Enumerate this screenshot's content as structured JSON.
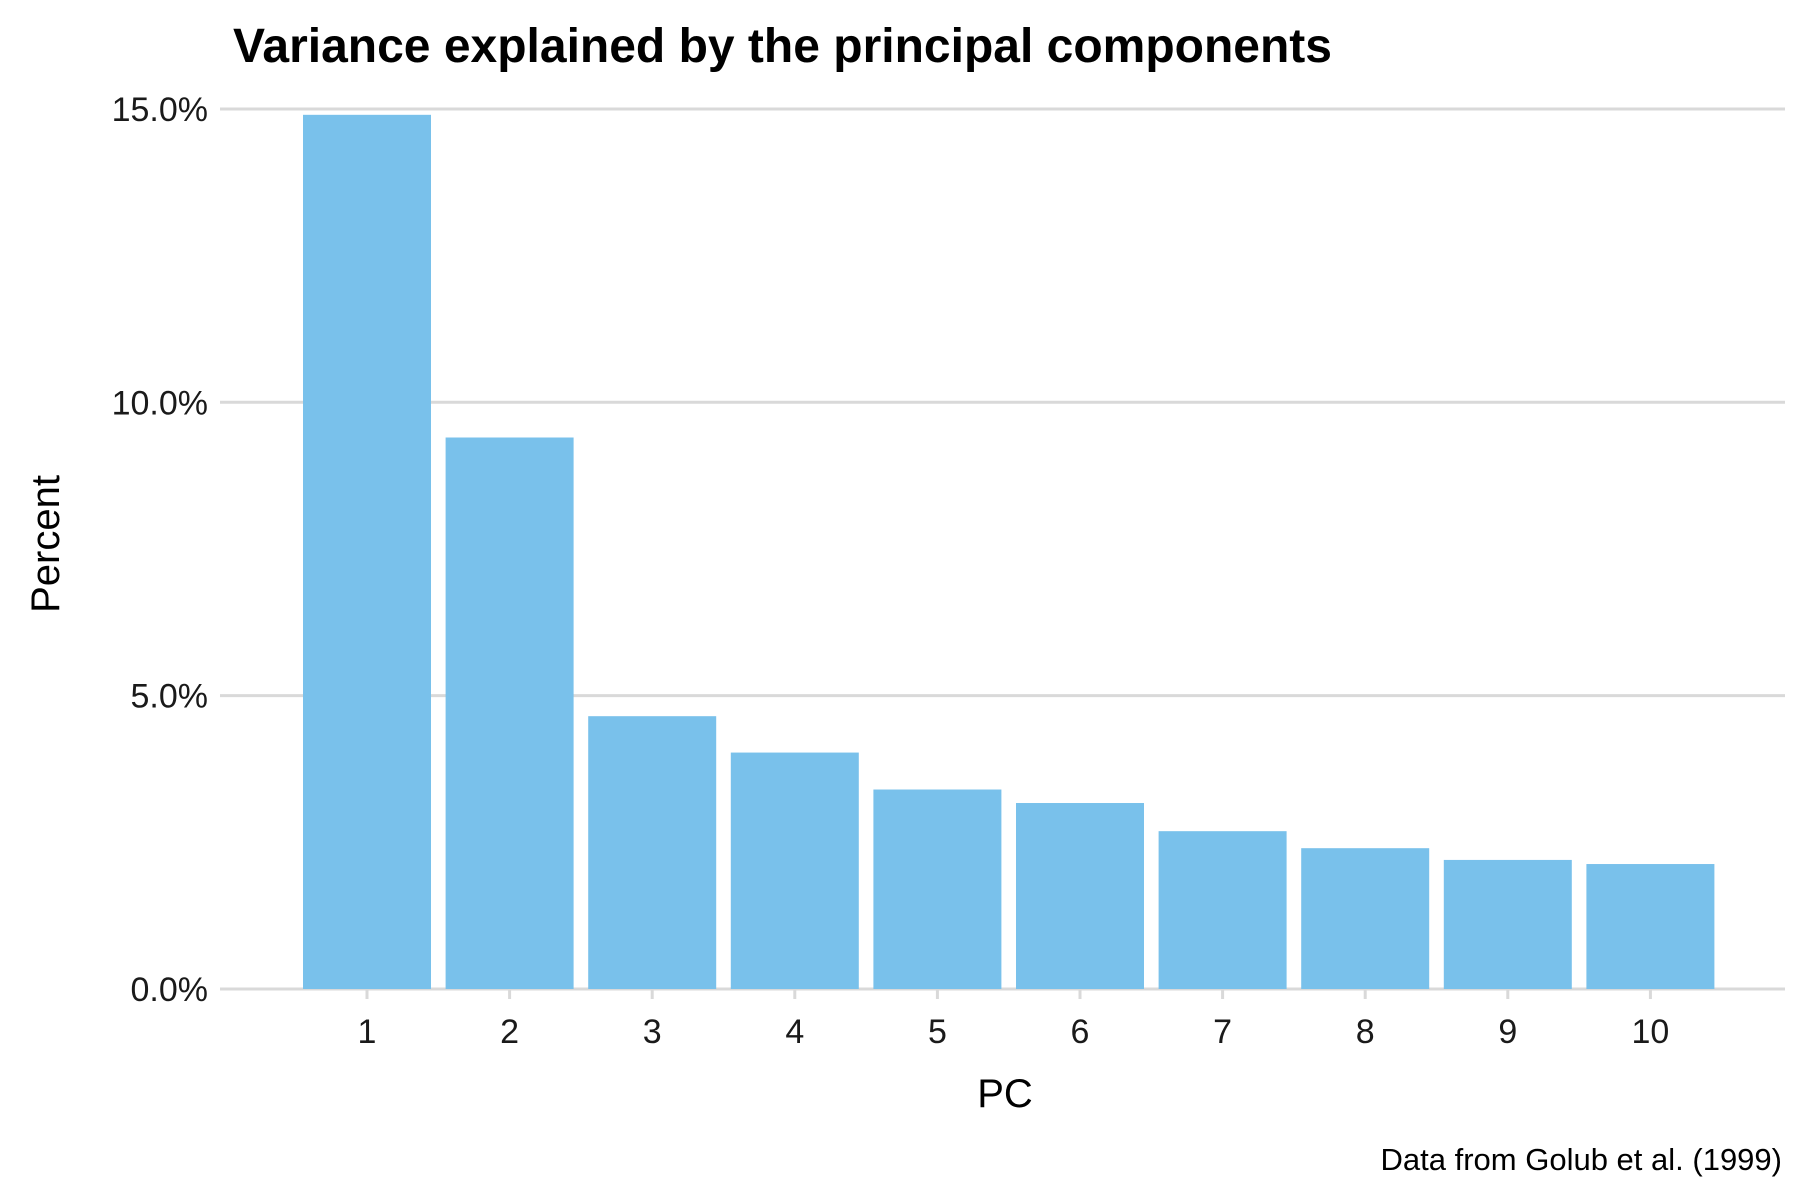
{
  "chart_data": {
    "type": "bar",
    "title": "Variance explained by the principal components",
    "xlabel": "PC",
    "ylabel": "Percent",
    "caption": "Data from Golub et al. (1999)",
    "categories": [
      "1",
      "2",
      "3",
      "4",
      "5",
      "6",
      "7",
      "8",
      "9",
      "10"
    ],
    "values": [
      14.9,
      9.4,
      4.65,
      4.03,
      3.4,
      3.17,
      2.69,
      2.4,
      2.2,
      2.13
    ],
    "ylim": [
      0,
      15.5
    ],
    "yticks": [
      0,
      5,
      10,
      15
    ],
    "ytick_labels": [
      "0.0%",
      "5.0%",
      "10.0%",
      "15.0%"
    ],
    "bar_color": "#79C1EB",
    "grid": "horizontal",
    "grid_color": "#D9D9D9",
    "legend": "none"
  }
}
